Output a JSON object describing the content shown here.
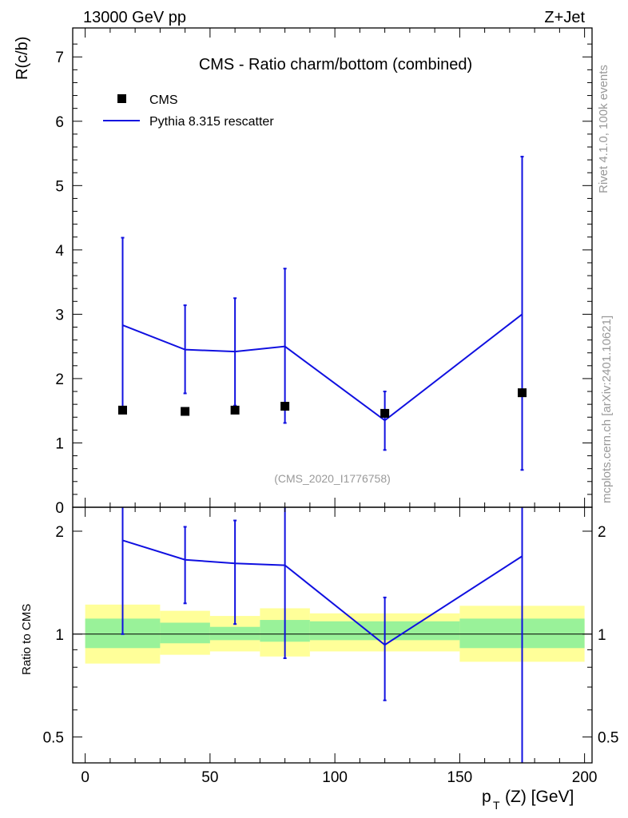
{
  "header": {
    "left": "13000 GeV pp",
    "right": "Z+Jet"
  },
  "side_labels": {
    "rivet": "Rivet 4.1.0,  100k events",
    "mcplots": "mcplots.cern.ch [arXiv:2401.10621]"
  },
  "colors": {
    "mc": "#1010e0",
    "data": "#000000",
    "band_stat": "#99f299",
    "band_total": "#ffff99",
    "watermark": "#999999"
  },
  "chart_data": [
    {
      "type": "scatter",
      "panel": "main",
      "title": "CMS - Ratio charm/bottom (combined)",
      "ylabel": "R(c/b)",
      "watermark": "(CMS_2020_I1776758)",
      "xlim": [
        -5,
        203
      ],
      "ylim": [
        0,
        7.45
      ],
      "yticks": [
        0,
        1,
        2,
        3,
        4,
        5,
        6,
        7
      ],
      "legend": [
        "CMS",
        "Pythia 8.315 rescatter"
      ],
      "data": {
        "name": "CMS",
        "x": [
          15,
          40,
          60,
          80,
          120,
          175
        ],
        "y": [
          1.51,
          1.49,
          1.51,
          1.57,
          1.46,
          1.78
        ]
      },
      "mc": {
        "name": "Pythia 8.315 rescatter",
        "x": [
          15,
          40,
          60,
          80,
          120,
          175
        ],
        "y": [
          2.83,
          2.45,
          2.42,
          2.5,
          1.35,
          3.0
        ],
        "err_low": [
          1.53,
          1.77,
          1.58,
          1.31,
          0.89,
          0.58
        ],
        "err_high": [
          4.19,
          3.14,
          3.25,
          3.71,
          1.8,
          5.45
        ]
      }
    },
    {
      "type": "scatter",
      "panel": "ratio",
      "ylabel": "Ratio to CMS",
      "xlabel": "p_T (Z) [GeV]",
      "xlim": [
        -5,
        203
      ],
      "ylim": [
        0.42,
        2.35
      ],
      "yscale": "log",
      "yticks": [
        "0.5",
        "1",
        "2"
      ],
      "xticks": [
        "0",
        "50",
        "100",
        "150",
        "200"
      ],
      "mc_ratio": {
        "x": [
          15,
          40,
          60,
          80,
          120,
          175
        ],
        "y": [
          1.88,
          1.65,
          1.61,
          1.59,
          0.93,
          1.69
        ],
        "err_low": [
          1.0,
          1.23,
          1.07,
          0.85,
          0.64,
          0.33
        ],
        "err_high": [
          2.6,
          2.06,
          2.15,
          2.36,
          1.28,
          3.05
        ]
      },
      "bands": [
        {
          "xlo": 0,
          "xhi": 30,
          "stat_lo": 0.91,
          "stat_hi": 1.11,
          "tot_lo": 0.82,
          "tot_hi": 1.22
        },
        {
          "xlo": 30,
          "xhi": 50,
          "stat_lo": 0.94,
          "stat_hi": 1.08,
          "tot_lo": 0.87,
          "tot_hi": 1.17
        },
        {
          "xlo": 50,
          "xhi": 70,
          "stat_lo": 0.96,
          "stat_hi": 1.05,
          "tot_lo": 0.89,
          "tot_hi": 1.13
        },
        {
          "xlo": 70,
          "xhi": 90,
          "stat_lo": 0.95,
          "stat_hi": 1.1,
          "tot_lo": 0.86,
          "tot_hi": 1.19
        },
        {
          "xlo": 90,
          "xhi": 150,
          "stat_lo": 0.96,
          "stat_hi": 1.09,
          "tot_lo": 0.89,
          "tot_hi": 1.15
        },
        {
          "xlo": 150,
          "xhi": 200,
          "stat_lo": 0.91,
          "stat_hi": 1.11,
          "tot_lo": 0.83,
          "tot_hi": 1.21
        }
      ]
    }
  ]
}
